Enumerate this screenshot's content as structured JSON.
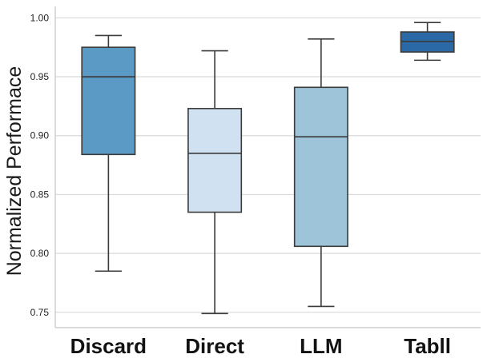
{
  "chart_data": {
    "type": "box",
    "title": "",
    "xlabel": "",
    "ylabel": "Normalized Performace",
    "ylim": [
      0.737,
      1.007
    ],
    "yticks": [
      0.75,
      0.8,
      0.85,
      0.9,
      0.95,
      1.0
    ],
    "ytick_labels": [
      "0.75",
      "0.80",
      "0.85",
      "0.90",
      "0.95",
      "1.00"
    ],
    "grid": true,
    "categories": [
      "Discard",
      "Direct",
      "LLM",
      "Tabll"
    ],
    "boxes": [
      {
        "name": "Discard",
        "whisker_low": 0.785,
        "q1": 0.884,
        "median": 0.95,
        "q3": 0.975,
        "whisker_high": 0.985,
        "color": "#5b9ac5"
      },
      {
        "name": "Direct",
        "whisker_low": 0.749,
        "q1": 0.835,
        "median": 0.885,
        "q3": 0.923,
        "whisker_high": 0.972,
        "color": "#d0e1f2"
      },
      {
        "name": "LLM",
        "whisker_low": 0.755,
        "q1": 0.806,
        "median": 0.899,
        "q3": 0.941,
        "whisker_high": 0.982,
        "color": "#9ec4da"
      },
      {
        "name": "Tabll",
        "whisker_low": 0.964,
        "q1": 0.971,
        "median": 0.98,
        "q3": 0.988,
        "whisker_high": 0.996,
        "color": "#2b68a6"
      }
    ]
  }
}
